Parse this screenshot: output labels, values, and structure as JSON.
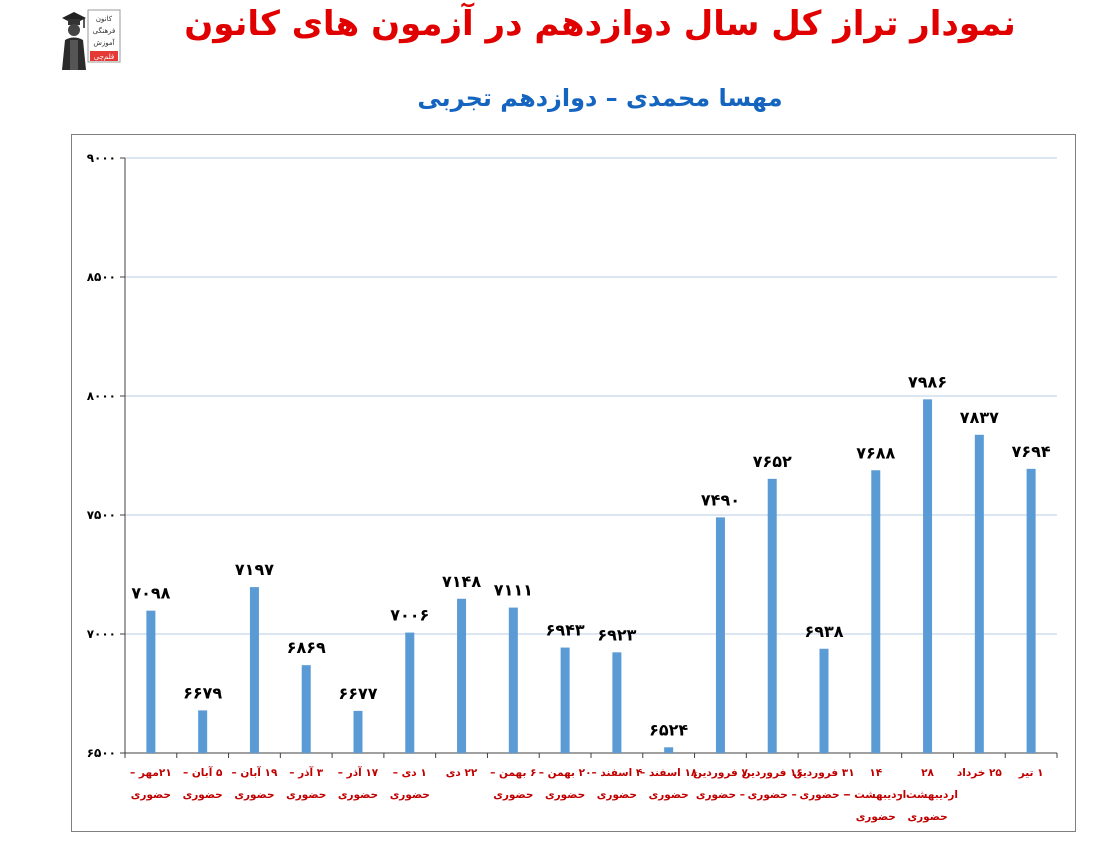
{
  "header": {
    "title": "نمودار تراز کل سال دوازدهم در آزمون های کانون",
    "subtitle": "مهسا محمدی – دوازدهم تجربی"
  },
  "logo": {
    "lines": [
      "کانون",
      "فرهنگی",
      "آموزش",
      "قلم‌چی"
    ]
  },
  "colors": {
    "title": "#e00000",
    "subtitle": "#1565c0",
    "bar": "#5b9bd5",
    "category_label": "#c00000",
    "gridline": "#b8cce4"
  },
  "chart_data": {
    "type": "bar",
    "ylim": [
      6500,
      9000
    ],
    "yticks": [
      "۶۵۰۰",
      "۷۰۰۰",
      "۷۵۰۰",
      "۸۰۰۰",
      "۸۵۰۰",
      "۹۰۰۰"
    ],
    "ytick_values": [
      6500,
      7000,
      7500,
      8000,
      8500,
      9000
    ],
    "grid": true,
    "categories": [
      [
        "۲۱مهر –",
        "حضوری"
      ],
      [
        "۵ آبان –",
        "حضوری"
      ],
      [
        "۱۹ آبان –",
        "حضوری"
      ],
      [
        "۳ آذر –",
        "حضوری"
      ],
      [
        "۱۷ آذر –",
        "حضوری"
      ],
      [
        "۱ دی –",
        "حضوری"
      ],
      [
        "۲۲ دی",
        ""
      ],
      [
        "۶ بهمن –",
        "حضوری"
      ],
      [
        "۲۰ بهمن –",
        "حضوری"
      ],
      [
        "۴ اسفند –",
        "حضوری"
      ],
      [
        "۱۸ اسفند –",
        "حضوری"
      ],
      [
        "۷ فروردین",
        "– حضوری"
      ],
      [
        "۱۶ فروردین",
        "– حضوری"
      ],
      [
        "۳۱ فروردین",
        "– حضوری"
      ],
      [
        "۱۴",
        "اردیبهشت –",
        "حضوری"
      ],
      [
        "۲۸",
        "اردیبهشت –",
        "حضوری"
      ],
      [
        "۲۵ خرداد",
        ""
      ],
      [
        "۱ تیر",
        ""
      ]
    ],
    "values": [
      7098,
      6679,
      7197,
      6869,
      6677,
      7006,
      7148,
      7111,
      6943,
      6923,
      6524,
      7490,
      7652,
      6938,
      7688,
      7986,
      7837,
      7694
    ],
    "value_labels": [
      "۷۰۹۸",
      "۶۶۷۹",
      "۷۱۹۷",
      "۶۸۶۹",
      "۶۶۷۷",
      "۷۰۰۶",
      "۷۱۴۸",
      "۷۱۱۱",
      "۶۹۴۳",
      "۶۹۲۳",
      "۶۵۲۴",
      "۷۴۹۰",
      "۷۶۵۲",
      "۶۹۳۸",
      "۷۶۸۸",
      "۷۹۸۶",
      "۷۸۳۷",
      "۷۶۹۴"
    ]
  }
}
